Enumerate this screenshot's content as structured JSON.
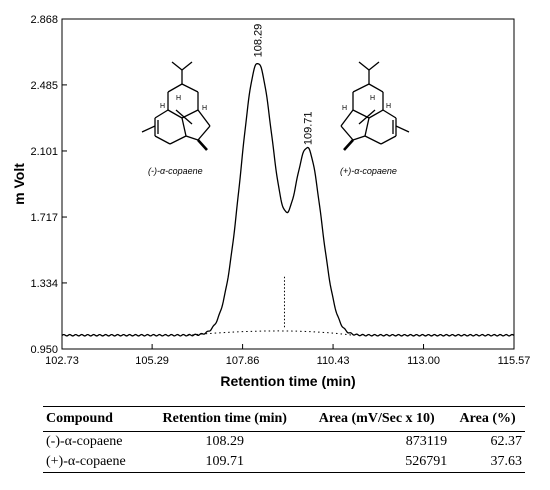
{
  "chart_data": {
    "type": "line",
    "xlabel": "Retention time (min)",
    "ylabel": "m Volt",
    "xlim": [
      102.73,
      115.57
    ],
    "ylim": [
      0.95,
      2.868
    ],
    "x_ticks": [
      "102.73",
      "105.29",
      "107.86",
      "110.43",
      "113.00",
      "115.57"
    ],
    "y_ticks": [
      "0.950",
      "1.334",
      "1.717",
      "2.101",
      "2.485",
      "2.868"
    ],
    "baseline": 1.03,
    "peaks": [
      {
        "time": 108.29,
        "label": "108.29",
        "apex": 2.61,
        "compound": "(-)-α-copaene"
      },
      {
        "time": 109.71,
        "label": "109.71",
        "apex": 2.1,
        "compound": "(+)-α-copaene"
      }
    ],
    "valley": {
      "time": 109.05,
      "value": 1.37
    }
  },
  "table": {
    "headers": [
      "Compound",
      "Retention time (min)",
      "Area (mV/Sec x 10)",
      "Area (%)"
    ],
    "rows": [
      [
        "(-)-α-copaene",
        "108.29",
        "873119",
        "62.37"
      ],
      [
        "(+)-α-copaene",
        "109.71",
        "526791",
        "37.63"
      ]
    ]
  }
}
